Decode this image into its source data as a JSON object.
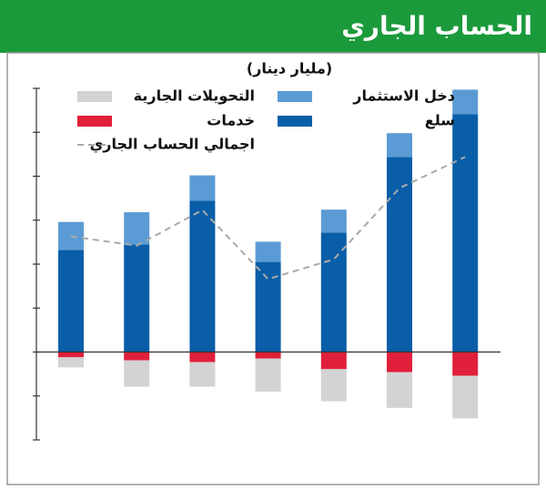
{
  "chart_data": {
    "type": "bar",
    "title": "الحساب الجاري",
    "subtitle": "(مليار دينار)",
    "categories": [
      null,
      null,
      null,
      null,
      null,
      null,
      null
    ],
    "ylim": [
      -2,
      6
    ],
    "yticks": [
      -2,
      -1,
      0,
      1,
      2,
      3,
      4,
      5,
      6
    ],
    "series": [
      {
        "name": "التحويلات الجارية",
        "type": "bar",
        "color": "#d3d3d3",
        "values": [
          -0.23,
          -0.6,
          -0.56,
          -0.75,
          -0.73,
          -0.81,
          -0.97
        ]
      },
      {
        "name": "دخل الاستثمار",
        "type": "bar",
        "color": "#5b9bd5",
        "values": [
          0.64,
          0.73,
          0.58,
          0.46,
          0.52,
          0.54,
          0.56
        ]
      },
      {
        "name": "خدمات",
        "type": "bar",
        "color": "#e0203a",
        "values": [
          -0.12,
          -0.19,
          -0.23,
          -0.15,
          -0.39,
          -0.46,
          -0.54
        ]
      },
      {
        "name": "سلع",
        "type": "bar",
        "color": "#0a5ea8",
        "values": [
          2.32,
          2.45,
          3.44,
          2.05,
          2.72,
          4.44,
          5.41
        ]
      },
      {
        "name": "اجمالي الحساب الجاري",
        "type": "line",
        "color": "#aaaaaa",
        "values": [
          2.63,
          2.42,
          3.23,
          1.66,
          2.11,
          3.73,
          4.44
        ]
      }
    ]
  }
}
